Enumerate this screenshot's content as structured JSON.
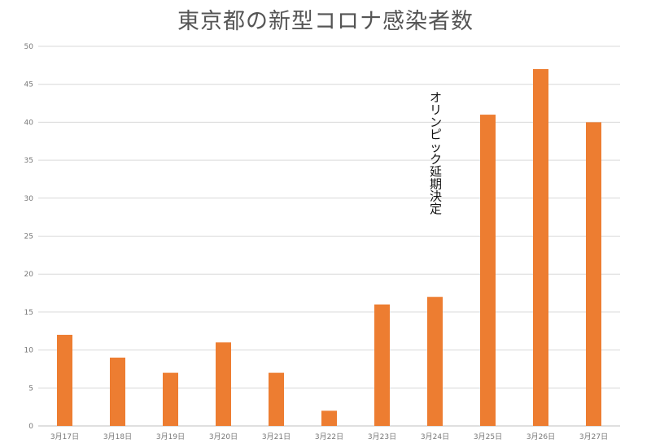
{
  "chart_data": {
    "type": "bar",
    "title": "東京都の新型コロナ感染者数",
    "categories": [
      "3月17日",
      "3月18日",
      "3月19日",
      "3月20日",
      "3月21日",
      "3月22日",
      "3月23日",
      "3月24日",
      "3月25日",
      "3月26日",
      "3月27日"
    ],
    "values": [
      12,
      9,
      7,
      11,
      7,
      2,
      16,
      17,
      41,
      47,
      40
    ],
    "ylim": [
      0,
      50
    ],
    "yticks": [
      0,
      5,
      10,
      15,
      20,
      25,
      30,
      35,
      40,
      45,
      50
    ],
    "grid": true,
    "legend": "none",
    "bar_color": "#ed7d31",
    "annotation": {
      "text": "オリンピック延期決定",
      "orientation": "vertical",
      "category": "3月24日"
    }
  }
}
